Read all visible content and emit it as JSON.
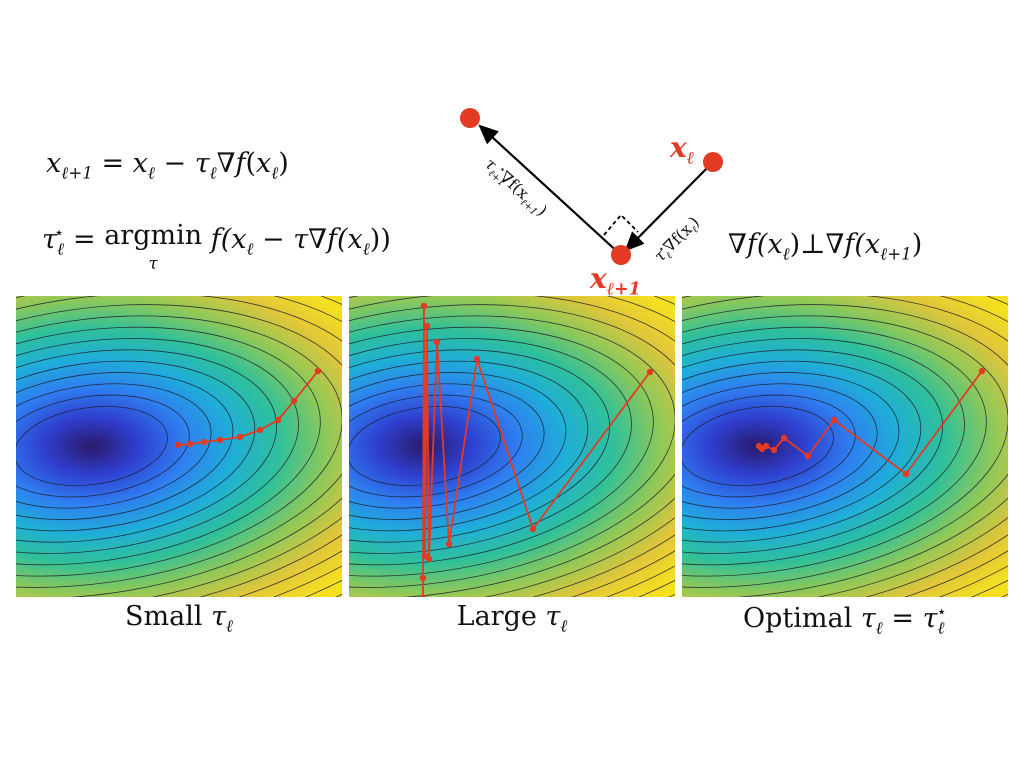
{
  "equations": {
    "update_rule": {
      "lhs": "x",
      "lhs_sub": "ℓ+1",
      "eq": " = ",
      "x": "x",
      "x_sub": "ℓ",
      "minus": " − ",
      "tau": "τ",
      "tau_sub": "ℓ",
      "grad": "∇",
      "f": "f",
      "paren_open": "(",
      "arg": "x",
      "arg_sub": "ℓ",
      "paren_close": ")"
    },
    "optimal_step": {
      "tau": "τ",
      "tau_sub": "ℓ",
      "tau_sup": "⋆",
      "eq": " = ",
      "argmin": "argmin",
      "argmin_under": "τ",
      "expr": " f(x",
      "expr_sub": "ℓ",
      "expr_rest": " − τ∇f(x",
      "expr_sub2": "ℓ",
      "expr_close": "))"
    },
    "orthogonality": {
      "grad1": "∇f(x",
      "grad1_sub": "ℓ",
      "grad1_close": ")",
      "perp": "⊥",
      "grad2": "∇f(x",
      "grad2_sub": "ℓ+1",
      "grad2_close": ")"
    }
  },
  "diagram": {
    "point_label_current": {
      "x": "x",
      "sub": "ℓ"
    },
    "point_label_next": {
      "x": "x",
      "sub": "ℓ+1"
    },
    "vector_label_next": {
      "tau": "τ",
      "sub": "ℓ+1",
      "sup": "⋆",
      "grad": "∇f(x",
      "gsub": "ℓ+1",
      "close": ")"
    },
    "vector_label_current": {
      "tau": "τ",
      "sub": "ℓ",
      "sup": "⋆",
      "grad": "∇f(x",
      "gsub": "ℓ",
      "close": ")"
    },
    "point_color": "#e33a23"
  },
  "panels": [
    {
      "caption_word": "Small ",
      "tau": "τ",
      "tau_sub": "ℓ",
      "path_color": "#e33a23"
    },
    {
      "caption_word": "Large ",
      "tau": "τ",
      "tau_sub": "ℓ",
      "path_color": "#e33a23"
    },
    {
      "caption_word": "Optimal ",
      "tau": "τ",
      "tau_sub": "ℓ",
      "eq": " = ",
      "tau2": "τ",
      "tau2_sub": "ℓ",
      "tau2_sup": "⋆",
      "path_color": "#e33a23"
    }
  ],
  "colormap": [
    "#2a1a6a",
    "#2f3fd0",
    "#2f7ff0",
    "#1faed8",
    "#2fc09a",
    "#8cc85a",
    "#e0c63a",
    "#f5e020"
  ]
}
